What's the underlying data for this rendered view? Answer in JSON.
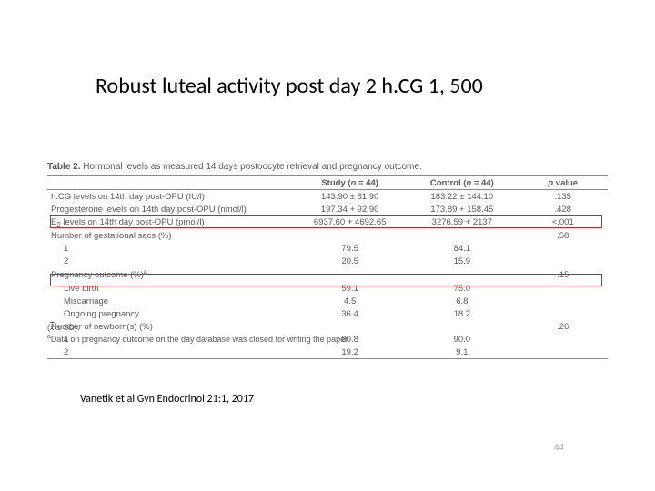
{
  "title": "Robust luteal activity post day 2 h.CG 1, 500",
  "table": {
    "caption_label": "Table 2.",
    "caption_text": "Hormonal levels as measured 14 days postoocyte retrieval and pregnancy outcome.",
    "header_study_html": "Study (<i>n</i> = 44)",
    "header_control_html": "Control (<i>n</i> = 44)",
    "header_p_html": "<i>p</i> value",
    "rows": [
      {
        "label": "h.CG levels on 14th day post-OPU (IU/l)",
        "study": "143.90 ± 81.90",
        "ctrl": "183.22 ± 144.10",
        "p": ".135",
        "indent": 0,
        "sup": ""
      },
      {
        "label": "Progesterone levels on 14th day post-OPU (nmol/l)",
        "study": "197.34 + 92.90",
        "ctrl": "173.89 + 158.45",
        "p": ".428",
        "indent": 0,
        "sup": ""
      },
      {
        "label": "E2 levels on 14th day post-OPU (pmol/l)",
        "study": "6937.60 + 4692.65",
        "ctrl": "3276.59 + 2137",
        "p": "<.001",
        "indent": 0,
        "sup": "",
        "sub": "2"
      },
      {
        "label": "Number of gestational sacs (%)",
        "study": "",
        "ctrl": "",
        "p": ".58",
        "indent": 0,
        "sup": ""
      },
      {
        "label": "1",
        "study": "79.5",
        "ctrl": "84.1",
        "p": "",
        "indent": 1,
        "sup": ""
      },
      {
        "label": "2",
        "study": "20.5",
        "ctrl": "15.9",
        "p": "",
        "indent": 1,
        "sup": ""
      },
      {
        "label": "Pregnancy outcome (%)",
        "study": "",
        "ctrl": "",
        "p": ".15",
        "indent": 0,
        "sup": "a"
      },
      {
        "label": "Live birth",
        "study": "59.1",
        "ctrl": "75.0",
        "p": "",
        "indent": 1,
        "sup": ""
      },
      {
        "label": "Miscarriage",
        "study": "4.5",
        "ctrl": "6.8",
        "p": "",
        "indent": 1,
        "sup": ""
      },
      {
        "label": "Ongoing pregnancy",
        "study": "36.4",
        "ctrl": "18.2",
        "p": "",
        "indent": 1,
        "sup": ""
      },
      {
        "label": "Number of newborn(s) (%)",
        "study": "",
        "ctrl": "",
        "p": ".26",
        "indent": 0,
        "sup": ""
      },
      {
        "label": "1",
        "study": "80.8",
        "ctrl": "90.0",
        "p": "",
        "indent": 1,
        "sup": ""
      },
      {
        "label": "2",
        "study": "19.2",
        "ctrl": "9.1",
        "p": "",
        "indent": 1,
        "sup": ""
      }
    ],
    "footnote_html": "(<span style='text-decoration:overline'>x</span> ± SD).",
    "footnote_a": "Data on pregnancy outcome on the day database was closed for writing the paper."
  },
  "citation": "Vanetik et al Gyn Endocrinol 21:1, 2017",
  "page_number": "44",
  "colors": {
    "background": "#ffffff",
    "title_text": "#000000",
    "table_text": "#5a5a5a",
    "rule": "#888888",
    "highlight_box": "#d02020",
    "pagenum": "#aaaaaa"
  },
  "fonts": {
    "title_family": "Calibri",
    "title_size_pt": 24,
    "table_size_pt": 9.5,
    "footnote_size_pt": 9,
    "citation_size_pt": 12
  }
}
